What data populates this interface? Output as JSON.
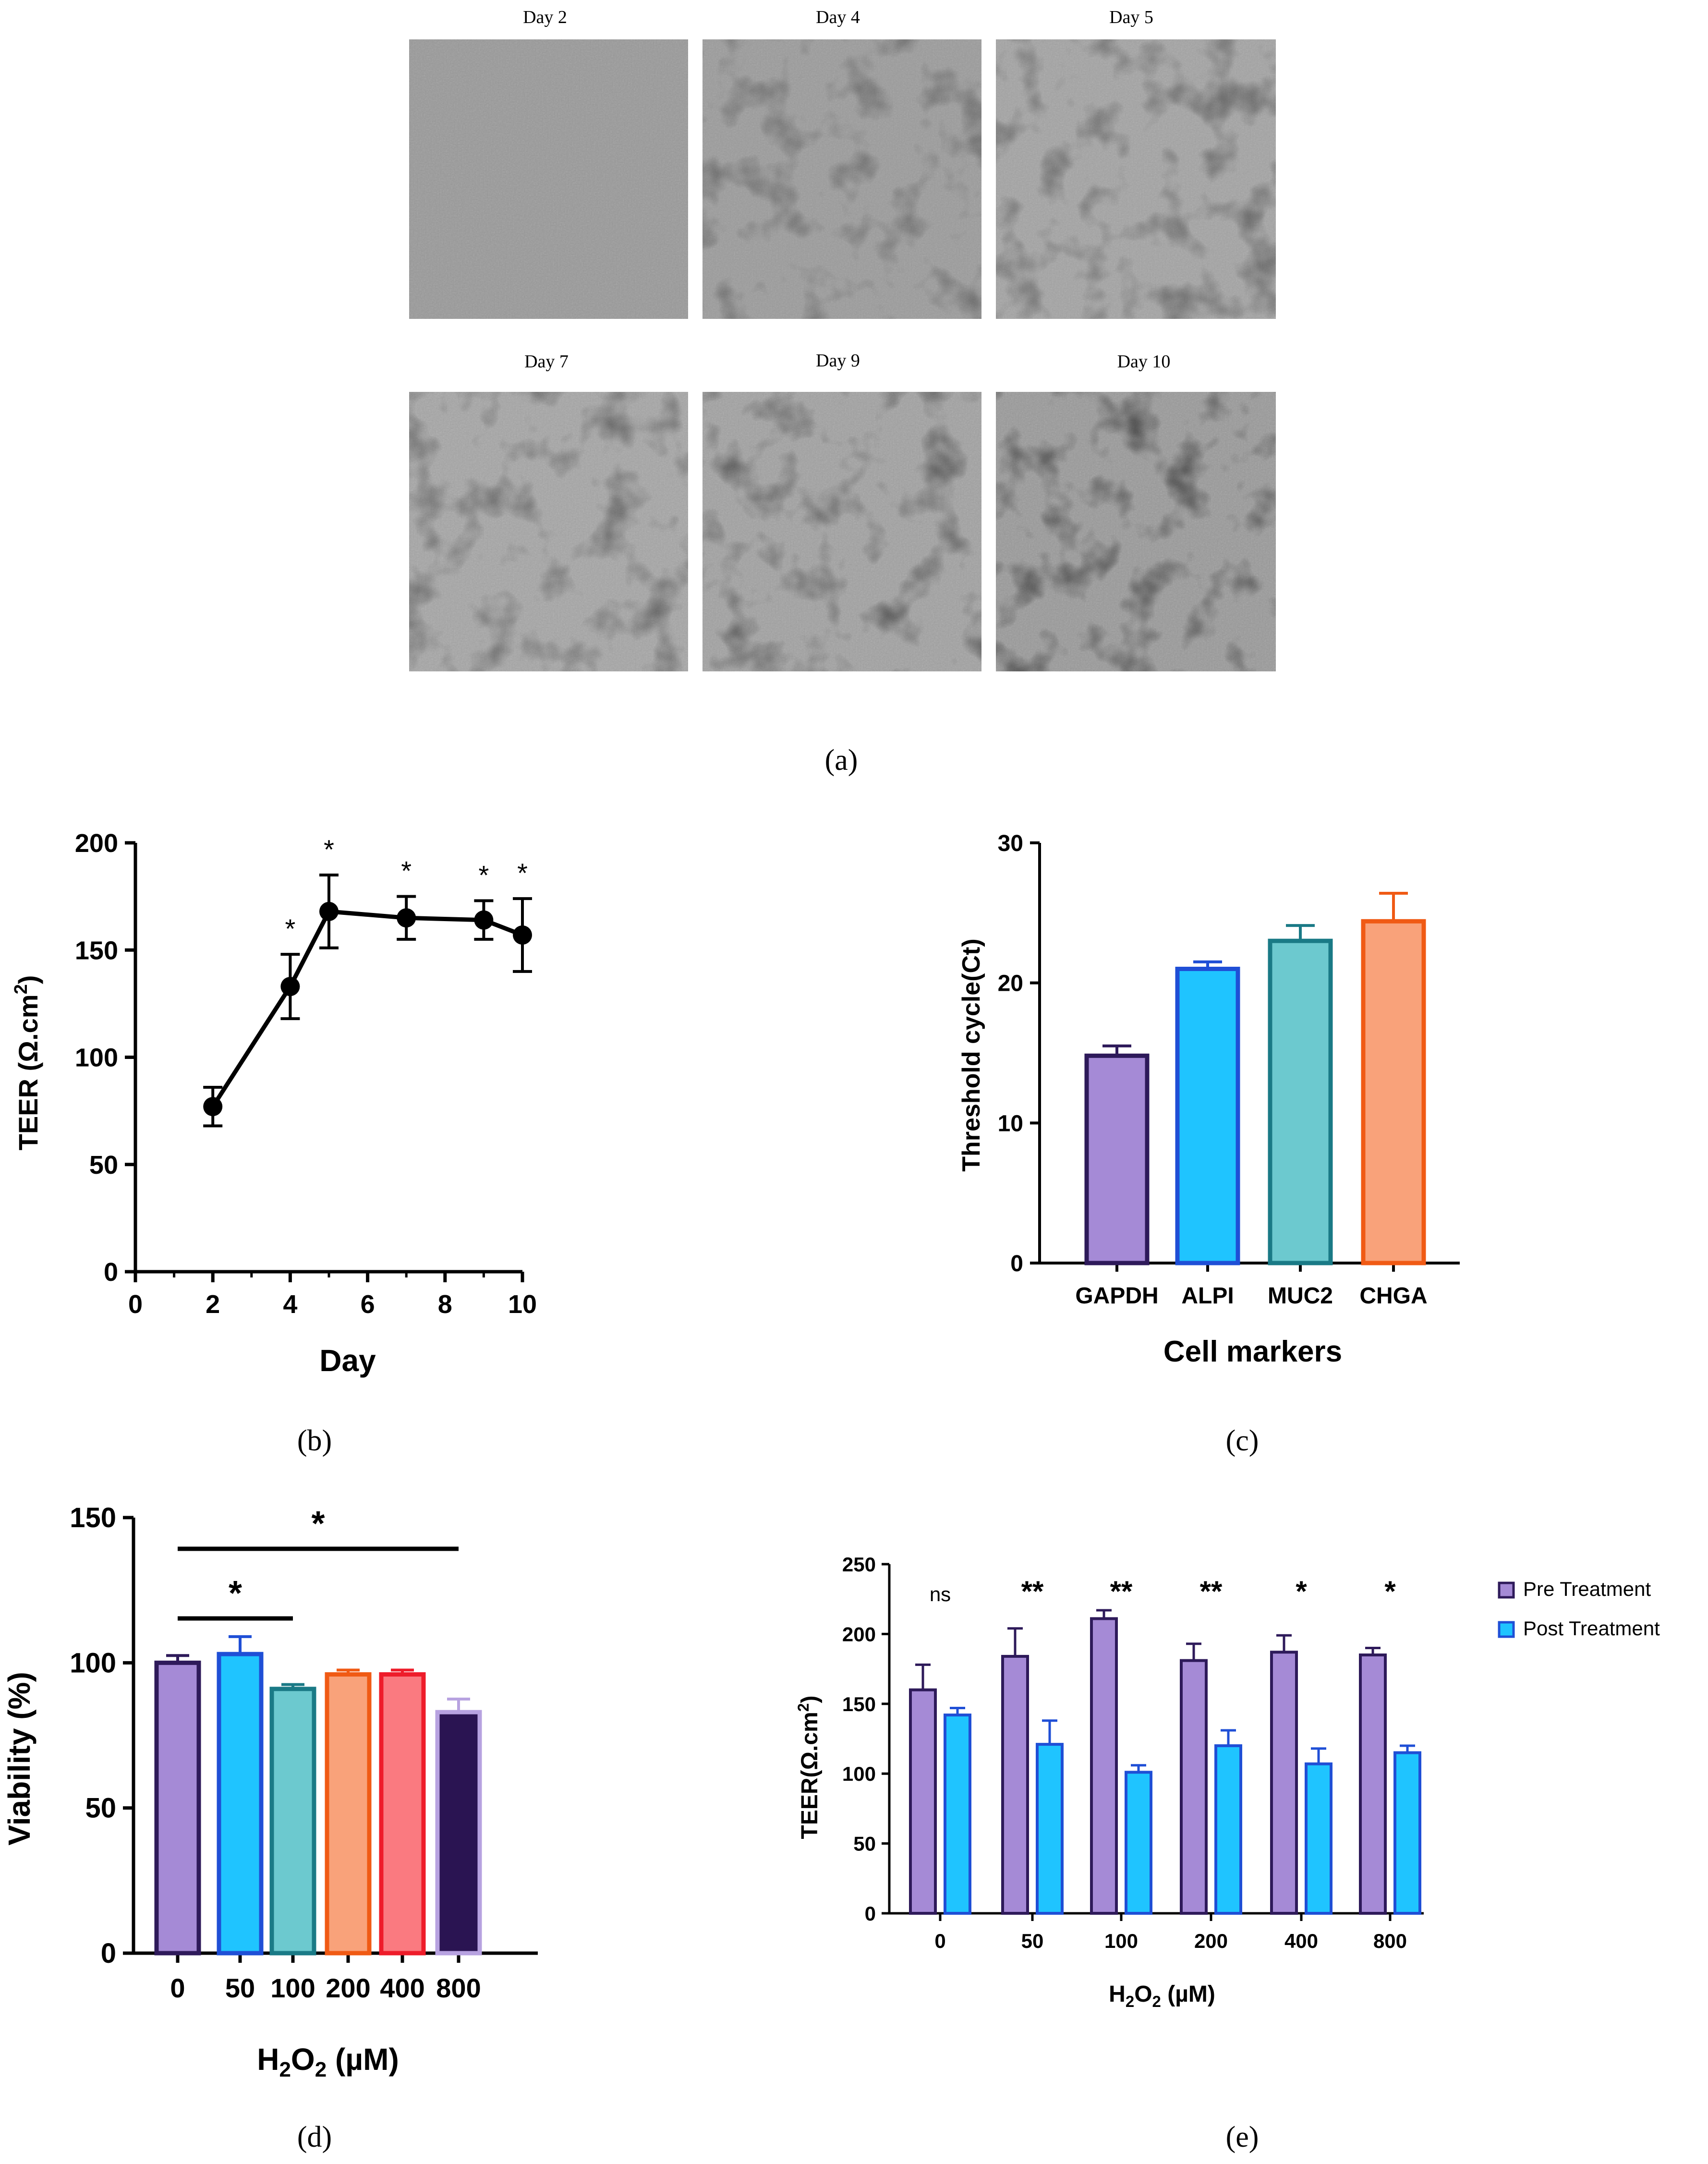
{
  "micrographs": [
    {
      "label": "Day 2"
    },
    {
      "label": "Day 4"
    },
    {
      "label": "Day 5"
    },
    {
      "label": "Day 7"
    },
    {
      "label": "Day 9"
    },
    {
      "label": "Day 10"
    }
  ],
  "panel_labels": {
    "a": "(a)",
    "b": "(b)",
    "c": "(c)",
    "d": "(d)",
    "e": "(e)"
  },
  "colors": {
    "purple": "#a58ad6",
    "purple_edge": "#2e1a5a",
    "blue": "#1fc4ff",
    "blue_edge": "#1f4fd6",
    "teal": "#6cc9cf",
    "teal_edge": "#1a7a86",
    "orange": "#f9a27a",
    "orange_edge": "#f05a14",
    "salmon": "#fa7a80",
    "salmon_edge": "#ee1c2a",
    "dark": "#2a1452",
    "dark_edge": "#b7a2e0",
    "pre": "#a58ad6",
    "pre_edge": "#2e1a5a",
    "post": "#1fc4ff",
    "post_edge": "#1f4fd6"
  },
  "chart_data": [
    {
      "id": "b",
      "type": "line",
      "x": [
        2,
        4,
        5,
        7,
        9,
        10
      ],
      "values": [
        77,
        133,
        168,
        165,
        164,
        157
      ],
      "errors": [
        9,
        15,
        17,
        10,
        9,
        17
      ],
      "significance": [
        "",
        "*",
        "*",
        "*",
        "*",
        "*"
      ],
      "xlabel": "Day",
      "ylabel_prefix": "TEER (Ω.cm",
      "ylabel_sup": "2",
      "ylabel_suffix": ")",
      "xlim": [
        0,
        10
      ],
      "ylim": [
        0,
        200
      ],
      "xticks": [
        "0",
        "2",
        "4",
        "6",
        "8",
        "10"
      ],
      "yticks": [
        "0",
        "50",
        "100",
        "150",
        "200"
      ]
    },
    {
      "id": "c",
      "type": "bar",
      "categories": [
        "GAPDH",
        "ALPI",
        "MUC2",
        "CHGA"
      ],
      "values": [
        14.8,
        21.0,
        23.0,
        24.4
      ],
      "errors": [
        0.7,
        0.5,
        1.1,
        2.0
      ],
      "xlabel": "Cell markers",
      "ylabel": "Threshold cycle(Ct)",
      "ylim": [
        0,
        30
      ],
      "yticks": [
        "0",
        "10",
        "20",
        "30"
      ]
    },
    {
      "id": "d",
      "type": "bar",
      "categories": [
        "0",
        "50",
        "100",
        "200",
        "400",
        "800"
      ],
      "values": [
        100,
        103,
        91,
        96,
        96,
        83
      ],
      "errors": [
        2.5,
        6,
        1.5,
        1.5,
        1.5,
        4.5
      ],
      "xlabel_prefix": "H",
      "xlabel_sub1": "2",
      "xlabel_mid": "O",
      "xlabel_sub2": "2",
      "xlabel_suffix": " (µM)",
      "ylabel": "Viability (%)",
      "ylim": [
        0,
        150
      ],
      "yticks": [
        "0",
        "50",
        "100",
        "150"
      ],
      "comparisons": [
        {
          "from": 0,
          "to": 2,
          "label": "*"
        },
        {
          "from": 0,
          "to": 5,
          "label": "*"
        }
      ]
    },
    {
      "id": "e",
      "type": "bar",
      "categories": [
        "0",
        "50",
        "100",
        "200",
        "400",
        "800"
      ],
      "series": [
        {
          "name": "Pre Treatment",
          "values": [
            160,
            184,
            211,
            181,
            187,
            185
          ],
          "errors": [
            18,
            20,
            6,
            12,
            12,
            5
          ]
        },
        {
          "name": "Post Treatment",
          "values": [
            142,
            121,
            101,
            120,
            107,
            115
          ],
          "errors": [
            5,
            17,
            5,
            11,
            11,
            5
          ]
        }
      ],
      "significance": [
        "ns",
        "**",
        "**",
        "**",
        "*",
        "*"
      ],
      "xlabel_prefix": "H",
      "xlabel_sub1": "2",
      "xlabel_mid": "O",
      "xlabel_sub2": "2",
      "xlabel_suffix": " (µM)",
      "ylabel_prefix": "TEER(Ω.cm",
      "ylabel_sup": "2",
      "ylabel_suffix": ")",
      "ylim": [
        0,
        250
      ],
      "yticks": [
        "0",
        "50",
        "100",
        "150",
        "200",
        "250"
      ],
      "legend_position": "top-right"
    }
  ]
}
